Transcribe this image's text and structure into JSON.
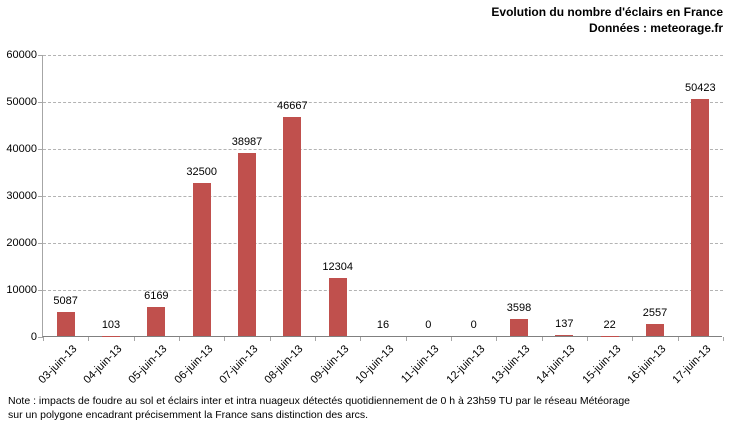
{
  "chart_data": {
    "type": "bar",
    "title": "Evolution du nombre d'éclairs en France",
    "subtitle": "Données : meteorage.fr",
    "categories": [
      "03-juin-13",
      "04-juin-13",
      "05-juin-13",
      "06-juin-13",
      "07-juin-13",
      "08-juin-13",
      "09-juin-13",
      "10-juin-13",
      "11-juin-13",
      "12-juin-13",
      "13-juin-13",
      "14-juin-13",
      "15-juin-13",
      "16-juin-13",
      "17-juin-13"
    ],
    "values": [
      5087,
      103,
      6169,
      32500,
      38987,
      46667,
      12304,
      16,
      0,
      0,
      3598,
      137,
      22,
      2557,
      50423
    ],
    "xlabel": "",
    "ylabel": "",
    "ylim": [
      0,
      60000
    ],
    "ytick_interval": 10000,
    "yticks": [
      "0",
      "10000",
      "20000",
      "30000",
      "40000",
      "50000",
      "60000"
    ],
    "grid": "horizontal-dashed",
    "legend": "none",
    "data_labels": true,
    "bar_color": "#c0504d",
    "gridline_color": "#b3b3b3",
    "axis_color": "#808080"
  },
  "note": {
    "line1": "Note : impacts de foudre au sol et éclairs inter et intra nuageux détectés quotidiennement de 0 h à 23h59 TU par le réseau Météorage",
    "line2": "sur un polygone encadrant précisemment la France sans distinction des arcs."
  }
}
